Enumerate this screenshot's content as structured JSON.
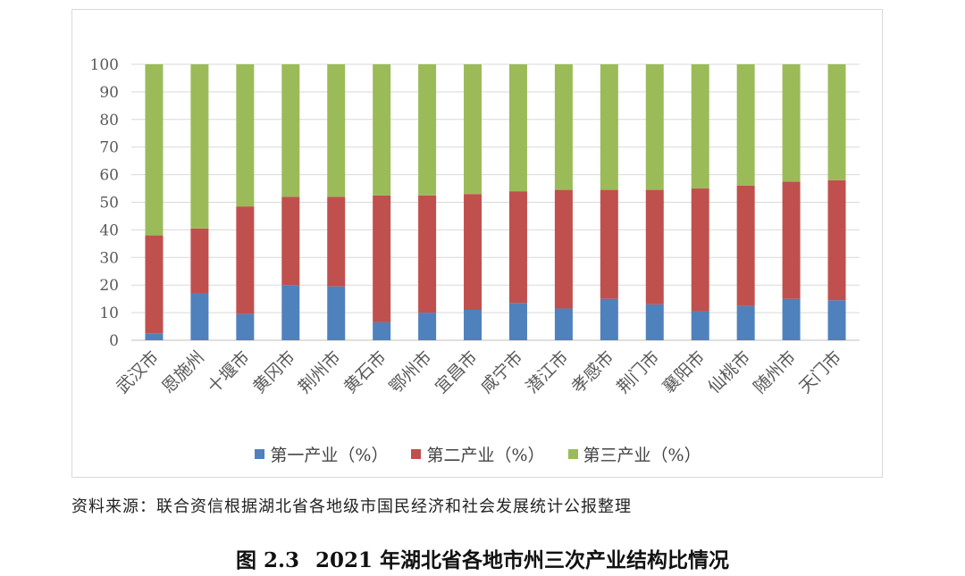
{
  "colors": {
    "primary": "#4f81bd",
    "secondary": "#c0504d",
    "tertiary": "#9bbb59",
    "grid": "#d9d9d9",
    "axis_text": "#595959"
  },
  "legend": {
    "primary": "第一产业（%）",
    "secondary": "第二产业（%）",
    "tertiary": "第三产业（%）"
  },
  "source_note": "资料来源：联合资信根据湖北省各地级市国民经济和社会发展统计公报整理",
  "caption": {
    "number": "图 2.3",
    "title": "2021 年湖北省各地市州三次产业结构比情况"
  },
  "chart_data": {
    "type": "bar",
    "stacked": true,
    "title": "2021 年湖北省各地市州三次产业结构比情况",
    "categories": [
      "武汉市",
      "恩施州",
      "十堰市",
      "黄冈市",
      "荆州市",
      "黄石市",
      "鄂州市",
      "宜昌市",
      "咸宁市",
      "潜江市",
      "孝感市",
      "荆门市",
      "襄阳市",
      "仙桃市",
      "随州市",
      "天门市"
    ],
    "series": [
      {
        "name": "第一产业（%）",
        "values": [
          2.5,
          17,
          9.5,
          20,
          19.5,
          6.5,
          10,
          11,
          13.5,
          11.5,
          15,
          13,
          10.5,
          12.5,
          15,
          14.5
        ]
      },
      {
        "name": "第二产业（%）",
        "values": [
          35.5,
          23.5,
          39,
          32,
          32.5,
          46,
          42.5,
          42,
          40.5,
          43,
          39.5,
          41.5,
          44.5,
          43.5,
          42.5,
          43.5
        ]
      },
      {
        "name": "第三产业（%）",
        "values": [
          62,
          59.5,
          51.5,
          48,
          48,
          47.5,
          47.5,
          47,
          46,
          45.5,
          45.5,
          45.5,
          45,
          44,
          42.5,
          42
        ]
      }
    ],
    "ylim": [
      0,
      100
    ],
    "yticks": [
      0,
      10,
      20,
      30,
      40,
      50,
      60,
      70,
      80,
      90,
      100
    ],
    "xlabel": "",
    "ylabel": "",
    "legend_position": "bottom"
  }
}
